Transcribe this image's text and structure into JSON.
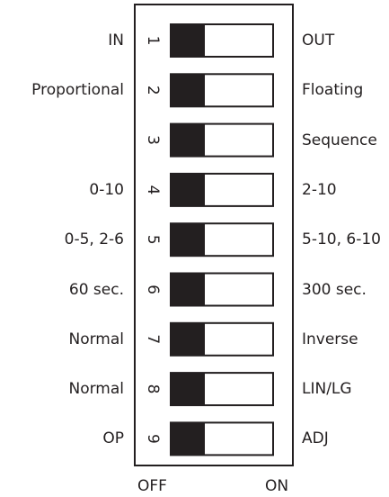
{
  "switches": [
    {
      "number": "1",
      "left_label": "IN",
      "right_label": "OUT",
      "state": "OFF"
    },
    {
      "number": "2",
      "left_label": "Proportional",
      "right_label": "Floating",
      "state": "OFF"
    },
    {
      "number": "3",
      "left_label": "",
      "right_label": "Sequence",
      "state": "OFF"
    },
    {
      "number": "4",
      "left_label": "0-10",
      "right_label": "2-10",
      "state": "OFF"
    },
    {
      "number": "5",
      "left_label": "0-5, 2-6",
      "right_label": "5-10, 6-10",
      "state": "OFF"
    },
    {
      "number": "6",
      "left_label": "60 sec.",
      "right_label": "300 sec.",
      "state": "OFF"
    },
    {
      "number": "7",
      "left_label": "Normal",
      "right_label": "Inverse",
      "state": "OFF"
    },
    {
      "number": "8",
      "left_label": "Normal",
      "right_label": "LIN/LG",
      "state": "OFF"
    },
    {
      "number": "9",
      "left_label": "OP",
      "right_label": "ADJ",
      "state": "OFF"
    }
  ],
  "axis": {
    "off_label": "OFF",
    "on_label": "ON"
  },
  "colors": {
    "ink": "#231f20",
    "background": "#ffffff"
  }
}
